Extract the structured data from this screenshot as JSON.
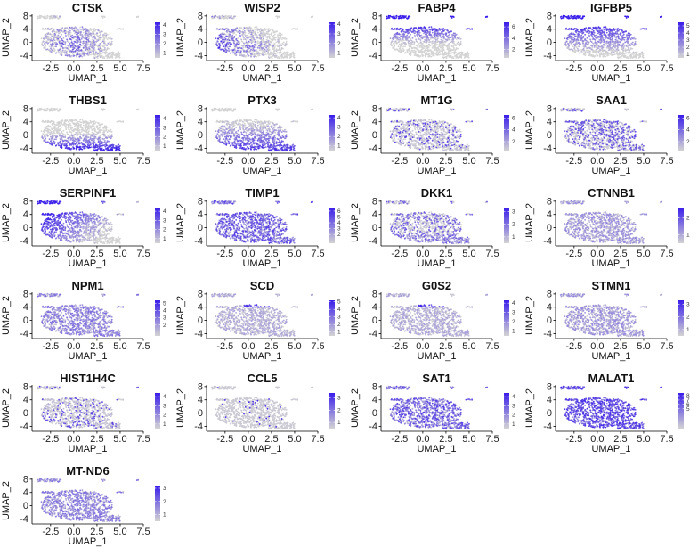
{
  "chart_data": {
    "type": "scatter",
    "plot_kind": "UMAP feature plot grid",
    "xlabel": "UMAP_1",
    "ylabel": "UMAP_2",
    "xlim": [
      -4.5,
      7.5
    ],
    "ylim": [
      -5.5,
      8.5
    ],
    "x_ticks": [
      "-2.5",
      "0.0",
      "2.5",
      "5.0",
      "7.5"
    ],
    "y_ticks": [
      "8",
      "4",
      "0",
      "-4"
    ],
    "grid": false,
    "legend_placement": "right of each panel",
    "colors": {
      "low": "#d3d3d3",
      "high": "#3a1eea"
    },
    "panels": [
      {
        "gene": "CTSK",
        "legend_ticks": [
          "4",
          "3",
          "2",
          "1"
        ],
        "max": 4.3,
        "pattern": "center_left"
      },
      {
        "gene": "WISP2",
        "legend_ticks": [
          "4",
          "3",
          "2",
          "1"
        ],
        "max": 4.2,
        "pattern": "left_mid"
      },
      {
        "gene": "FABP4",
        "legend_ticks": [
          "6",
          "4",
          "2"
        ],
        "max": 6.8,
        "pattern": "top"
      },
      {
        "gene": "IGFBP5",
        "legend_ticks": [
          "5",
          "4",
          "3",
          "2",
          "1"
        ],
        "max": 5.5,
        "pattern": "top_broad"
      },
      {
        "gene": "THBS1",
        "legend_ticks": [
          "4",
          "3",
          "2",
          "1"
        ],
        "max": 4.4,
        "pattern": "bottom"
      },
      {
        "gene": "PTX3",
        "legend_ticks": [
          "4",
          "3",
          "2",
          "1"
        ],
        "max": 4.3,
        "pattern": "bottom_broad"
      },
      {
        "gene": "MT1G",
        "legend_ticks": [
          "6",
          "4",
          "2"
        ],
        "max": 6.5,
        "pattern": "sparse"
      },
      {
        "gene": "SAA1",
        "legend_ticks": [
          "6",
          "4",
          "2"
        ],
        "max": 6.5,
        "pattern": "scattered"
      },
      {
        "gene": "SERPINF1",
        "legend_ticks": [
          "4",
          "3",
          "2",
          "1"
        ],
        "max": 4.4,
        "pattern": "left_top"
      },
      {
        "gene": "TIMP1",
        "legend_ticks": [
          "6",
          "5",
          "4",
          "3",
          "2"
        ],
        "max": 6.6,
        "pattern": "uniform"
      },
      {
        "gene": "DKK1",
        "legend_ticks": [
          "3",
          "2",
          "1"
        ],
        "max": 3.3,
        "pattern": "bottom_light"
      },
      {
        "gene": "CTNNB1",
        "legend_ticks": [
          "2",
          "1"
        ],
        "max": 2.6,
        "pattern": "light"
      },
      {
        "gene": "NPM1",
        "legend_ticks": [
          "5",
          "4",
          "3",
          "2"
        ],
        "max": 5.4,
        "pattern": "uniform_light"
      },
      {
        "gene": "SCD",
        "legend_ticks": [
          "5",
          "4",
          "3",
          "2",
          "1"
        ],
        "max": 5.2,
        "pattern": "top_small"
      },
      {
        "gene": "G0S2",
        "legend_ticks": [
          "4",
          "3",
          "2",
          "1"
        ],
        "max": 4.3,
        "pattern": "top_small"
      },
      {
        "gene": "STMN1",
        "legend_ticks": [
          "3",
          "2",
          "1"
        ],
        "max": 3.3,
        "pattern": "light"
      },
      {
        "gene": "HIST1H4C",
        "legend_ticks": [
          "4",
          "3",
          "2",
          "1"
        ],
        "max": 4.4,
        "pattern": "sparse"
      },
      {
        "gene": "CCL5",
        "legend_ticks": [
          "3",
          "2",
          "1"
        ],
        "max": 3.4,
        "pattern": "very_sparse"
      },
      {
        "gene": "SAT1",
        "legend_ticks": [
          "4",
          "3",
          "2",
          "1"
        ],
        "max": 4.4,
        "pattern": "uniform"
      },
      {
        "gene": "MALAT1",
        "legend_ticks": [
          "8",
          "7",
          "6",
          "5"
        ],
        "max": 8.6,
        "pattern": "uniform_strong"
      },
      {
        "gene": "MT-ND6",
        "legend_ticks": [
          "3",
          "2",
          "1"
        ],
        "max": 3.2,
        "pattern": "uniform_light"
      }
    ]
  }
}
